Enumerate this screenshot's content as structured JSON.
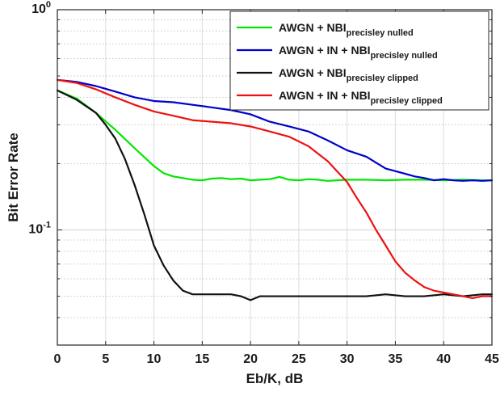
{
  "chart_data": {
    "type": "line",
    "title": "",
    "xlabel": "Eb/K, dB",
    "ylabel": "Bit Error Rate",
    "xlim": [
      0,
      45
    ],
    "ylim": [
      0.03,
      1
    ],
    "yscale": "log",
    "grid": true,
    "legend_position": "top-right",
    "x_ticks": [
      0,
      5,
      10,
      15,
      20,
      25,
      30,
      35,
      40,
      45
    ],
    "x_tick_labels": [
      "0",
      "5",
      "10",
      "15",
      "20",
      "25",
      "30",
      "35",
      "40",
      "45"
    ],
    "y_tick_labels": [
      {
        "value": 1,
        "base": "10",
        "exp": "0"
      },
      {
        "value": 0.1,
        "base": "10",
        "exp": "-1"
      }
    ],
    "series": [
      {
        "name": "AWGN + NBI",
        "subscript": "precisley nulled",
        "color": "#00e600",
        "x": [
          0,
          2,
          4,
          6,
          8,
          10,
          11,
          12,
          13,
          14,
          15,
          16,
          17,
          18,
          19,
          20,
          21,
          22,
          23,
          24,
          25,
          26,
          27,
          28,
          29,
          30,
          32,
          34,
          36,
          38,
          40,
          42,
          44,
          45
        ],
        "y": [
          0.43,
          0.395,
          0.34,
          0.285,
          0.235,
          0.195,
          0.181,
          0.175,
          0.172,
          0.169,
          0.168,
          0.171,
          0.172,
          0.17,
          0.171,
          0.168,
          0.169,
          0.17,
          0.174,
          0.169,
          0.168,
          0.17,
          0.169,
          0.167,
          0.168,
          0.169,
          0.169,
          0.168,
          0.169,
          0.169,
          0.168,
          0.169,
          0.168,
          0.168
        ]
      },
      {
        "name": "AWGN  + IN + NBI",
        "subscript": "precisley nulled",
        "color": "#0000cc",
        "x": [
          0,
          2,
          4,
          6,
          8,
          10,
          12,
          14,
          16,
          18,
          20,
          22,
          24,
          26,
          28,
          30,
          32,
          34,
          36,
          37,
          38,
          39,
          40,
          41,
          42,
          43,
          44,
          45
        ],
        "y": [
          0.48,
          0.47,
          0.45,
          0.425,
          0.4,
          0.385,
          0.38,
          0.37,
          0.36,
          0.35,
          0.335,
          0.31,
          0.295,
          0.28,
          0.255,
          0.23,
          0.215,
          0.19,
          0.18,
          0.175,
          0.172,
          0.168,
          0.17,
          0.168,
          0.167,
          0.168,
          0.167,
          0.168
        ]
      },
      {
        "name": "AWGN + NBI",
        "subscript": "precisley clipped",
        "color": "#111111",
        "x": [
          0,
          2,
          4,
          5,
          6,
          7,
          8,
          9,
          10,
          11,
          12,
          13,
          14,
          15,
          16,
          17,
          18,
          19,
          20,
          21,
          22,
          24,
          26,
          28,
          30,
          32,
          34,
          36,
          38,
          40,
          42,
          44,
          45
        ],
        "y": [
          0.43,
          0.39,
          0.34,
          0.3,
          0.26,
          0.21,
          0.16,
          0.118,
          0.085,
          0.069,
          0.059,
          0.053,
          0.051,
          0.051,
          0.051,
          0.051,
          0.051,
          0.05,
          0.048,
          0.05,
          0.05,
          0.05,
          0.05,
          0.05,
          0.05,
          0.05,
          0.051,
          0.05,
          0.05,
          0.051,
          0.05,
          0.051,
          0.051
        ]
      },
      {
        "name": "AWGN + IN + NBI",
        "subscript": "precisley clipped",
        "color": "#ee1111",
        "x": [
          0,
          2,
          4,
          6,
          8,
          10,
          12,
          14,
          16,
          18,
          20,
          22,
          24,
          26,
          28,
          30,
          31,
          32,
          33,
          34,
          35,
          36,
          37,
          38,
          39,
          40,
          41,
          42,
          43,
          44,
          45
        ],
        "y": [
          0.48,
          0.465,
          0.435,
          0.4,
          0.37,
          0.345,
          0.33,
          0.315,
          0.31,
          0.305,
          0.295,
          0.28,
          0.265,
          0.24,
          0.205,
          0.165,
          0.14,
          0.12,
          0.1,
          0.085,
          0.072,
          0.064,
          0.059,
          0.055,
          0.053,
          0.052,
          0.051,
          0.05,
          0.049,
          0.05,
          0.05
        ]
      }
    ]
  }
}
